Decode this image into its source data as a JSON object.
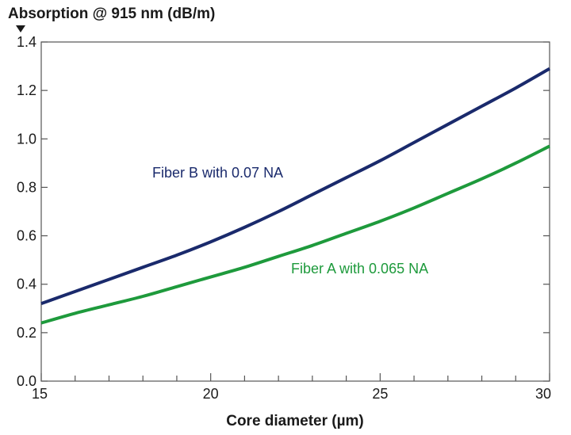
{
  "chart_data": {
    "type": "line",
    "title": "",
    "ylabel": "Absorption @ 915 nm (dB/m)",
    "xlabel": "Core diameter (µm)",
    "xlim": [
      15,
      30
    ],
    "ylim": [
      0.0,
      1.4
    ],
    "x_ticks": [
      "15",
      "20",
      "25",
      "30"
    ],
    "y_ticks": [
      "0.0",
      "0.2",
      "0.4",
      "0.6",
      "0.8",
      "1.0",
      "1.2",
      "1.4"
    ],
    "x_minor_step": 1,
    "grid": false,
    "series": [
      {
        "name": "Fiber B with 0.07 NA",
        "color": "#1a2a6c",
        "x": [
          15,
          16,
          17,
          18,
          19,
          20,
          21,
          22,
          23,
          24,
          25,
          26,
          27,
          28,
          29,
          30
        ],
        "values": [
          0.32,
          0.37,
          0.42,
          0.47,
          0.52,
          0.575,
          0.635,
          0.7,
          0.77,
          0.84,
          0.91,
          0.985,
          1.06,
          1.135,
          1.21,
          1.29
        ]
      },
      {
        "name": "Fiber A with 0.065 NA",
        "color": "#1e9a3c",
        "x": [
          15,
          16,
          17,
          18,
          19,
          20,
          21,
          22,
          23,
          24,
          25,
          26,
          27,
          28,
          29,
          30
        ],
        "values": [
          0.24,
          0.28,
          0.315,
          0.35,
          0.39,
          0.43,
          0.47,
          0.515,
          0.56,
          0.61,
          0.66,
          0.715,
          0.775,
          0.835,
          0.9,
          0.97
        ]
      }
    ]
  }
}
